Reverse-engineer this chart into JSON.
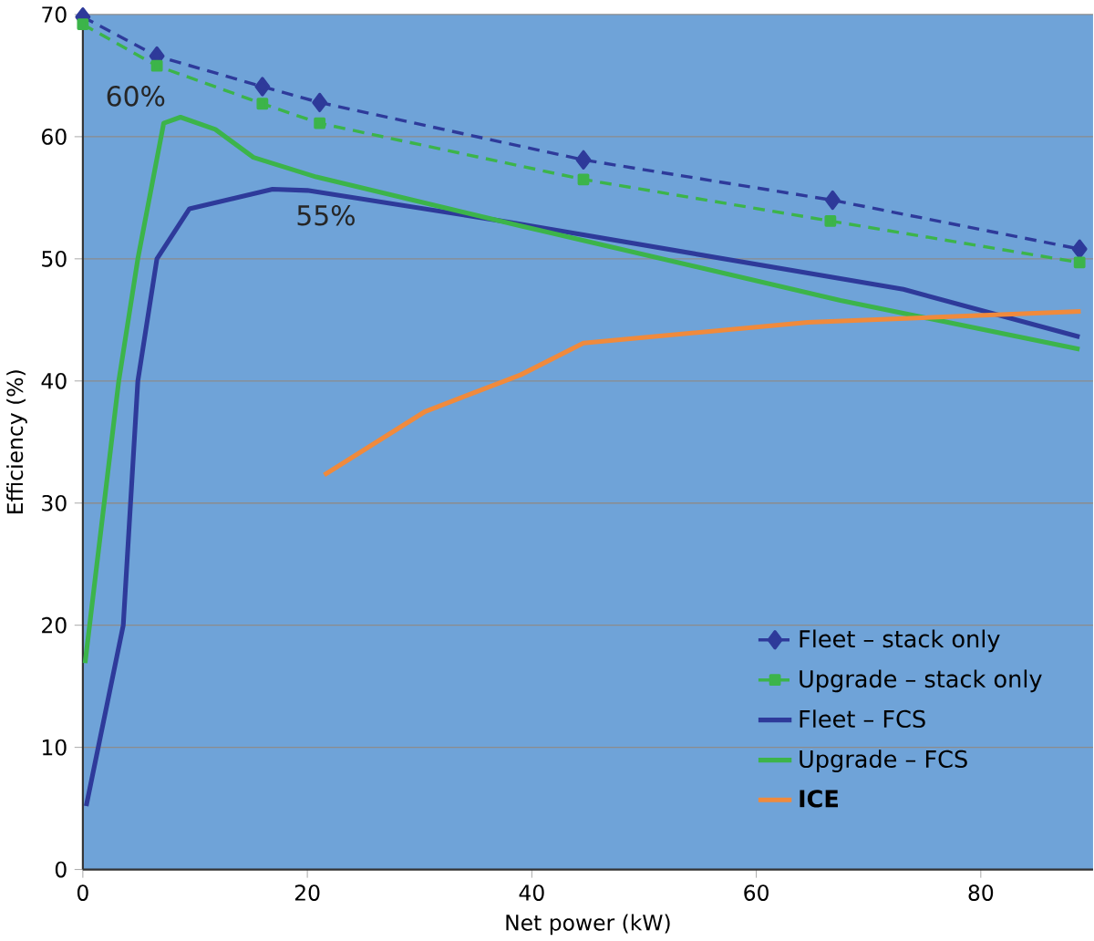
{
  "chart_data": {
    "type": "line",
    "xlabel": "Net power (kW)",
    "ylabel": "Efficiency (%)",
    "xlim": [
      0,
      90
    ],
    "xticks": [
      0,
      20,
      40,
      60,
      80
    ],
    "ylim": [
      0,
      70
    ],
    "yticks": [
      0,
      10,
      20,
      30,
      40,
      50,
      60,
      70
    ],
    "grid": "y",
    "legend": "bottom right",
    "series": [
      {
        "name": "Fleet – stack only",
        "color": "#2e3a9a",
        "marker": "diamond",
        "line_style": "dashed",
        "x": [
          0,
          6.6,
          16.0,
          21.1,
          44.6,
          66.8,
          88.8
        ],
        "values": [
          69.8,
          66.6,
          64.1,
          62.8,
          58.1,
          54.8,
          50.8
        ]
      },
      {
        "name": "Upgrade – stack only",
        "color": "#3cb44a",
        "marker": "square",
        "line_style": "dashed",
        "x": [
          0,
          6.6,
          16.0,
          21.1,
          44.6,
          66.6,
          88.8
        ],
        "values": [
          69.2,
          65.8,
          62.7,
          61.1,
          56.5,
          53.1,
          49.7
        ]
      },
      {
        "name": "Fleet – FCS",
        "color": "#2e3a9a",
        "marker": "none",
        "line_style": "solid",
        "x": [
          0.3,
          3.6,
          4.9,
          6.6,
          9.5,
          16.9,
          20,
          38.0,
          73.1,
          88.8
        ],
        "values": [
          5.2,
          20,
          40,
          50,
          54.1,
          55.7,
          55.6,
          53.0,
          47.5,
          43.6
        ]
      },
      {
        "name": "Upgrade – FCS",
        "color": "#3cb44a",
        "marker": "none",
        "line_style": "solid",
        "x": [
          0.2,
          3.2,
          4.9,
          7.2,
          8.7,
          11.8,
          15.2,
          20.8,
          39.0,
          67.5,
          88.8
        ],
        "values": [
          16.9,
          40,
          50,
          61.1,
          61.6,
          60.6,
          58.3,
          56.7,
          52.7,
          46.6,
          42.6
        ]
      },
      {
        "name": "**ICE**",
        "color": "#f08a3c",
        "marker": "none",
        "line_style": "solid",
        "x": [
          21.5,
          30.5,
          39.0,
          44.6,
          64.6,
          88.9
        ],
        "values": [
          32.3,
          37.5,
          40.5,
          43.1,
          44.8,
          45.7
        ]
      }
    ],
    "annotations": [
      {
        "text": "60%",
        "x": 8.7,
        "y": 61.6
      },
      {
        "text": "55%",
        "x": 18,
        "y": 55.6
      }
    ]
  }
}
